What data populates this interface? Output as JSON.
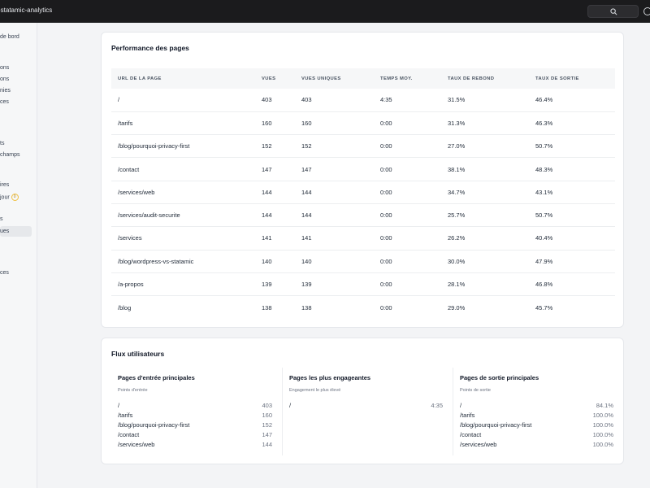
{
  "app": {
    "title": "-statamic-analytics"
  },
  "sidebar": {
    "items": [
      {
        "label": "de bord"
      },
      {
        "label": "ons"
      },
      {
        "label": "ons"
      },
      {
        "label": "nies"
      },
      {
        "label": "ces"
      },
      {
        "label": ""
      },
      {
        "label": "ts"
      },
      {
        "label": "champs"
      },
      {
        "label": "ires"
      },
      {
        "label": "jour",
        "badge": "0"
      },
      {
        "label": "s"
      },
      {
        "label": "ues"
      },
      {
        "label": "ces"
      }
    ]
  },
  "performance": {
    "title": "Performance des pages",
    "columns": [
      "URL DE LA PAGE",
      "VUES",
      "VUES UNIQUES",
      "TEMPS MOY.",
      "TAUX DE REBOND",
      "TAUX DE SORTIE"
    ],
    "rows": [
      [
        "/",
        "403",
        "403",
        "4:35",
        "31.5%",
        "46.4%"
      ],
      [
        "/tarifs",
        "160",
        "160",
        "0:00",
        "31.3%",
        "46.3%"
      ],
      [
        "/blog/pourquoi-privacy-first",
        "152",
        "152",
        "0:00",
        "27.0%",
        "50.7%"
      ],
      [
        "/contact",
        "147",
        "147",
        "0:00",
        "38.1%",
        "48.3%"
      ],
      [
        "/services/web",
        "144",
        "144",
        "0:00",
        "34.7%",
        "43.1%"
      ],
      [
        "/services/audit-securite",
        "144",
        "144",
        "0:00",
        "25.7%",
        "50.7%"
      ],
      [
        "/services",
        "141",
        "141",
        "0:00",
        "26.2%",
        "40.4%"
      ],
      [
        "/blog/wordpress-vs-statamic",
        "140",
        "140",
        "0:00",
        "30.0%",
        "47.9%"
      ],
      [
        "/a-propos",
        "139",
        "139",
        "0:00",
        "28.1%",
        "46.8%"
      ],
      [
        "/blog",
        "138",
        "138",
        "0:00",
        "29.0%",
        "45.7%"
      ]
    ]
  },
  "flux": {
    "title": "Flux utilisateurs",
    "entry": {
      "title": "Pages d'entrée principales",
      "subtitle": "Points d'entrée",
      "items": [
        {
          "page": "/",
          "value": "403"
        },
        {
          "page": "/tarifs",
          "value": "160"
        },
        {
          "page": "/blog/pourquoi-privacy-first",
          "value": "152"
        },
        {
          "page": "/contact",
          "value": "147"
        },
        {
          "page": "/services/web",
          "value": "144"
        }
      ]
    },
    "engaging": {
      "title": "Pages les plus engageantes",
      "subtitle": "Engagement le plus élevé",
      "items": [
        {
          "page": "/",
          "value": "4:35"
        }
      ]
    },
    "exit": {
      "title": "Pages de sortie principales",
      "subtitle": "Points de sortie",
      "items": [
        {
          "page": "/",
          "value": "84.1%"
        },
        {
          "page": "/tarifs",
          "value": "100.0%"
        },
        {
          "page": "/blog/pourquoi-privacy-first",
          "value": "100.0%"
        },
        {
          "page": "/contact",
          "value": "100.0%"
        },
        {
          "page": "/services/web",
          "value": "100.0%"
        }
      ]
    }
  }
}
